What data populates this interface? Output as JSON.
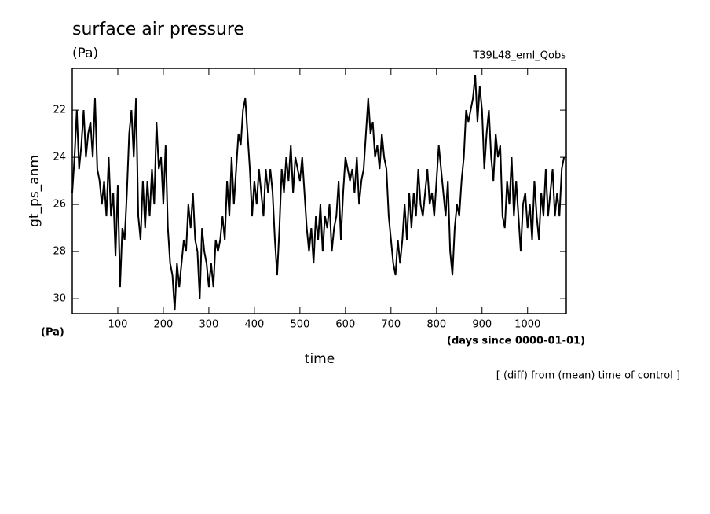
{
  "chart_data": {
    "type": "line",
    "title": "surface air pressure",
    "y_units": "(Pa)",
    "experiment": "T39L48_eml_Qobs",
    "y_label": "gt_ps_anm",
    "x_units_left": "(Pa)",
    "x_units": "(days since 0000-01-01)",
    "x_label": "time",
    "note": "[ (diff) from (mean) time of control ]",
    "xlim": [
      0,
      1085
    ],
    "ylim": [
      20.23,
      30.63
    ],
    "y_inverted": true,
    "xticks": [
      100,
      200,
      300,
      400,
      500,
      600,
      700,
      800,
      900,
      1000
    ],
    "yticks": [
      22,
      24,
      26,
      28,
      30
    ],
    "x": [
      0,
      5,
      10,
      15,
      20,
      25,
      30,
      35,
      40,
      45,
      50,
      55,
      60,
      65,
      70,
      75,
      80,
      85,
      90,
      95,
      100,
      105,
      110,
      115,
      120,
      125,
      130,
      135,
      140,
      145,
      150,
      155,
      160,
      165,
      170,
      175,
      180,
      185,
      190,
      195,
      200,
      205,
      210,
      215,
      220,
      225,
      230,
      235,
      240,
      245,
      250,
      255,
      260,
      265,
      270,
      275,
      280,
      285,
      290,
      295,
      300,
      305,
      310,
      315,
      320,
      325,
      330,
      335,
      340,
      345,
      350,
      355,
      360,
      365,
      370,
      375,
      380,
      385,
      390,
      395,
      400,
      405,
      410,
      415,
      420,
      425,
      430,
      435,
      440,
      445,
      450,
      455,
      460,
      465,
      470,
      475,
      480,
      485,
      490,
      495,
      500,
      505,
      510,
      515,
      520,
      525,
      530,
      535,
      540,
      545,
      550,
      555,
      560,
      565,
      570,
      575,
      580,
      585,
      590,
      595,
      600,
      605,
      610,
      615,
      620,
      625,
      630,
      635,
      640,
      645,
      650,
      655,
      660,
      665,
      670,
      675,
      680,
      685,
      690,
      695,
      700,
      705,
      710,
      715,
      720,
      725,
      730,
      735,
      740,
      745,
      750,
      755,
      760,
      765,
      770,
      775,
      780,
      785,
      790,
      795,
      800,
      805,
      810,
      815,
      820,
      825,
      830,
      835,
      840,
      845,
      850,
      855,
      860,
      865,
      870,
      875,
      880,
      885,
      890,
      895,
      900,
      905,
      910,
      915,
      920,
      925,
      930,
      935,
      940,
      945,
      950,
      955,
      960,
      965,
      970,
      975,
      980,
      985,
      990,
      995,
      1000,
      1005,
      1010,
      1015,
      1020,
      1025,
      1030,
      1035,
      1040,
      1045,
      1050,
      1055,
      1060,
      1065,
      1070,
      1075,
      1080
    ],
    "series": [
      {
        "color": "#000000",
        "values": [
          25.5,
          24,
          22,
          24.5,
          23.5,
          22,
          24,
          23,
          22.5,
          24,
          21.5,
          24.5,
          25,
          26,
          25,
          26.5,
          24,
          26.5,
          25.5,
          28.2,
          25.2,
          29.5,
          27,
          27.5,
          25.5,
          23,
          22,
          24,
          21.5,
          26.5,
          27.5,
          25,
          27,
          25,
          26.5,
          24.5,
          26,
          22.5,
          24.5,
          24,
          26,
          23.5,
          27,
          28.5,
          29,
          30.5,
          28.5,
          29.5,
          28.5,
          27.5,
          28,
          26,
          27,
          25.5,
          27.5,
          28,
          30,
          27,
          28,
          28.5,
          29.5,
          28.5,
          29.5,
          27.5,
          28,
          27.5,
          26.5,
          27.5,
          25,
          26.5,
          24,
          26,
          24.5,
          23,
          23.5,
          22,
          21.5,
          23,
          24.5,
          26.5,
          25,
          26,
          24.5,
          25.5,
          26.5,
          24.5,
          25.5,
          24.5,
          25.5,
          27.5,
          29,
          27,
          24.5,
          25.5,
          24,
          25,
          23.5,
          25.5,
          24,
          24.5,
          25,
          24,
          25.5,
          27,
          28,
          27,
          28.5,
          26.5,
          27.5,
          26,
          28,
          26.5,
          27,
          26,
          28,
          27,
          26.5,
          25,
          27.5,
          25.5,
          24,
          24.5,
          25,
          24.5,
          25.5,
          24,
          26,
          25,
          24.5,
          23,
          21.5,
          23,
          22.5,
          24,
          23.5,
          24.5,
          23,
          24,
          24.5,
          26.5,
          27.5,
          28.5,
          29,
          27.5,
          28.5,
          27.5,
          26,
          27.5,
          25.5,
          27,
          25.5,
          26.5,
          24.5,
          26,
          26.5,
          25.5,
          24.5,
          26,
          25.5,
          26.5,
          25,
          23.5,
          24.5,
          25.5,
          26.5,
          25,
          28,
          29,
          27,
          26,
          26.5,
          25,
          24,
          22,
          22.5,
          22,
          21.5,
          20.5,
          22.5,
          21,
          22,
          24.5,
          23,
          22,
          24,
          25,
          23,
          24,
          23.5,
          26.5,
          27,
          25,
          26,
          24,
          26.5,
          25,
          26.5,
          28,
          26,
          25.5,
          27,
          26,
          27.5,
          25,
          26.5,
          27.5,
          25.5,
          26.5,
          24.5,
          26.5,
          25.5,
          24.5,
          26.5,
          25.5,
          26.5,
          24.5,
          24
        ]
      }
    ]
  }
}
